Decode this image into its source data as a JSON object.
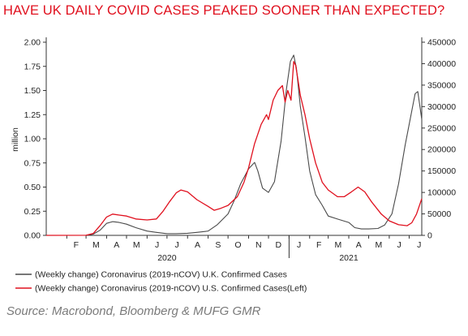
{
  "chart_data": {
    "type": "line",
    "title": "HAVE UK DAILY COVID CASES PEAKED SOONER THAN EXPECTED?",
    "source": "Source: Macrobond, Bloomberg & MUFG GMR",
    "x_range": [
      "2020-01-01",
      "2021-07-20"
    ],
    "x_ticks": [
      {
        "label": "F",
        "date": "2020-02-15"
      },
      {
        "label": "M",
        "date": "2020-03-16"
      },
      {
        "label": "A",
        "date": "2020-04-16"
      },
      {
        "label": "M",
        "date": "2020-05-16"
      },
      {
        "label": "J",
        "date": "2020-06-16"
      },
      {
        "label": "J",
        "date": "2020-07-16"
      },
      {
        "label": "A",
        "date": "2020-08-16"
      },
      {
        "label": "S",
        "date": "2020-09-16"
      },
      {
        "label": "O",
        "date": "2020-10-16"
      },
      {
        "label": "N",
        "date": "2020-11-16"
      },
      {
        "label": "D",
        "date": "2020-12-16"
      },
      {
        "label": "J",
        "date": "2021-01-16"
      },
      {
        "label": "F",
        "date": "2021-02-15"
      },
      {
        "label": "M",
        "date": "2021-03-16"
      },
      {
        "label": "A",
        "date": "2021-04-16"
      },
      {
        "label": "M",
        "date": "2021-05-16"
      },
      {
        "label": "J",
        "date": "2021-06-16"
      },
      {
        "label": "J",
        "date": "2021-07-16"
      }
    ],
    "year_labels": [
      {
        "label": "2020",
        "date": "2020-07-01"
      },
      {
        "label": "2021",
        "date": "2021-04-01"
      }
    ],
    "y_left": {
      "label": "million",
      "range": [
        0,
        2.0
      ],
      "ticks": [
        "0.00",
        "0.25",
        "0.50",
        "0.75",
        "1.00",
        "1.25",
        "1.50",
        "1.75",
        "2.00"
      ]
    },
    "y_right": {
      "range": [
        0,
        450000
      ],
      "ticks": [
        "0",
        "50000",
        "100000",
        "150000",
        "200000",
        "250000",
        "300000",
        "350000",
        "400000",
        "450000"
      ]
    },
    "series": [
      {
        "name": "(Weekly change) Coronavirus (2019-nCOV) U.S. Confirmed Cases(Left)",
        "axis": "left",
        "color": "#e0101e",
        "points": [
          [
            "2020-01-01",
            0
          ],
          [
            "2020-03-01",
            0.001
          ],
          [
            "2020-03-12",
            0.02
          ],
          [
            "2020-03-22",
            0.1
          ],
          [
            "2020-04-01",
            0.19
          ],
          [
            "2020-04-10",
            0.22
          ],
          [
            "2020-04-20",
            0.21
          ],
          [
            "2020-05-01",
            0.2
          ],
          [
            "2020-05-15",
            0.17
          ],
          [
            "2020-06-01",
            0.16
          ],
          [
            "2020-06-15",
            0.17
          ],
          [
            "2020-06-25",
            0.25
          ],
          [
            "2020-07-05",
            0.35
          ],
          [
            "2020-07-15",
            0.44
          ],
          [
            "2020-07-22",
            0.47
          ],
          [
            "2020-08-01",
            0.45
          ],
          [
            "2020-08-15",
            0.37
          ],
          [
            "2020-09-01",
            0.3
          ],
          [
            "2020-09-10",
            0.26
          ],
          [
            "2020-09-20",
            0.28
          ],
          [
            "2020-10-01",
            0.31
          ],
          [
            "2020-10-15",
            0.4
          ],
          [
            "2020-10-25",
            0.55
          ],
          [
            "2020-11-01",
            0.7
          ],
          [
            "2020-11-10",
            0.95
          ],
          [
            "2020-11-20",
            1.15
          ],
          [
            "2020-11-28",
            1.25
          ],
          [
            "2020-12-01",
            1.2
          ],
          [
            "2020-12-08",
            1.4
          ],
          [
            "2020-12-15",
            1.5
          ],
          [
            "2020-12-22",
            1.55
          ],
          [
            "2020-12-26",
            1.38
          ],
          [
            "2020-12-30",
            1.5
          ],
          [
            "2021-01-04",
            1.4
          ],
          [
            "2021-01-08",
            1.8
          ],
          [
            "2021-01-11",
            1.76
          ],
          [
            "2021-01-18",
            1.45
          ],
          [
            "2021-01-25",
            1.25
          ],
          [
            "2021-02-01",
            1.0
          ],
          [
            "2021-02-10",
            0.75
          ],
          [
            "2021-02-20",
            0.55
          ],
          [
            "2021-03-01",
            0.47
          ],
          [
            "2021-03-15",
            0.4
          ],
          [
            "2021-03-25",
            0.4
          ],
          [
            "2021-04-05",
            0.45
          ],
          [
            "2021-04-15",
            0.5
          ],
          [
            "2021-04-25",
            0.45
          ],
          [
            "2021-05-05",
            0.35
          ],
          [
            "2021-05-20",
            0.22
          ],
          [
            "2021-06-01",
            0.15
          ],
          [
            "2021-06-15",
            0.11
          ],
          [
            "2021-06-28",
            0.1
          ],
          [
            "2021-07-05",
            0.13
          ],
          [
            "2021-07-12",
            0.22
          ],
          [
            "2021-07-20",
            0.38
          ]
        ]
      },
      {
        "name": "(Weekly change) Coronavirus (2019-nCOV) U.K. Confirmed Cases",
        "axis": "right",
        "color": "#4a4a4a",
        "points": [
          [
            "2020-01-01",
            0
          ],
          [
            "2020-03-01",
            100
          ],
          [
            "2020-03-12",
            3000
          ],
          [
            "2020-03-22",
            12000
          ],
          [
            "2020-04-01",
            28000
          ],
          [
            "2020-04-10",
            32000
          ],
          [
            "2020-04-20",
            30000
          ],
          [
            "2020-05-01",
            26000
          ],
          [
            "2020-05-15",
            18000
          ],
          [
            "2020-06-01",
            10000
          ],
          [
            "2020-06-15",
            7000
          ],
          [
            "2020-07-01",
            4000
          ],
          [
            "2020-07-15",
            4000
          ],
          [
            "2020-08-01",
            5000
          ],
          [
            "2020-08-15",
            7000
          ],
          [
            "2020-09-01",
            10000
          ],
          [
            "2020-09-15",
            25000
          ],
          [
            "2020-10-01",
            50000
          ],
          [
            "2020-10-10",
            80000
          ],
          [
            "2020-10-20",
            120000
          ],
          [
            "2020-11-01",
            155000
          ],
          [
            "2020-11-10",
            170000
          ],
          [
            "2020-11-15",
            150000
          ],
          [
            "2020-11-22",
            110000
          ],
          [
            "2020-12-01",
            100000
          ],
          [
            "2020-12-10",
            125000
          ],
          [
            "2020-12-20",
            220000
          ],
          [
            "2020-12-28",
            340000
          ],
          [
            "2021-01-03",
            405000
          ],
          [
            "2021-01-08",
            420000
          ],
          [
            "2021-01-12",
            390000
          ],
          [
            "2021-01-18",
            300000
          ],
          [
            "2021-01-25",
            230000
          ],
          [
            "2021-02-01",
            150000
          ],
          [
            "2021-02-10",
            95000
          ],
          [
            "2021-02-20",
            70000
          ],
          [
            "2021-03-01",
            45000
          ],
          [
            "2021-03-15",
            38000
          ],
          [
            "2021-04-01",
            30000
          ],
          [
            "2021-04-10",
            18000
          ],
          [
            "2021-04-20",
            15000
          ],
          [
            "2021-05-01",
            15000
          ],
          [
            "2021-05-15",
            16000
          ],
          [
            "2021-05-25",
            24000
          ],
          [
            "2021-06-05",
            50000
          ],
          [
            "2021-06-15",
            120000
          ],
          [
            "2021-06-25",
            210000
          ],
          [
            "2021-07-05",
            290000
          ],
          [
            "2021-07-10",
            330000
          ],
          [
            "2021-07-14",
            335000
          ],
          [
            "2021-07-20",
            270000
          ]
        ]
      }
    ],
    "legend_order": [
      1,
      0
    ],
    "legend_placement": "bottom-left"
  }
}
